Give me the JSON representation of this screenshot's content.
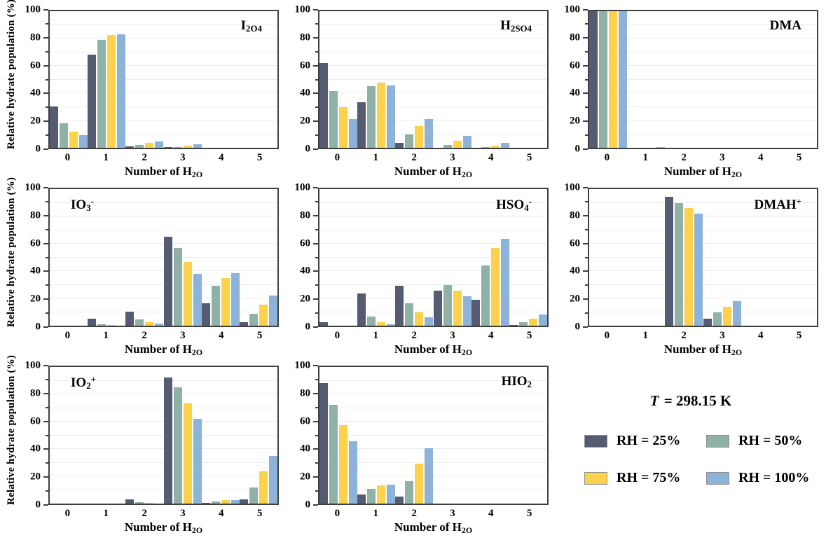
{
  "chart_data": {
    "type": "bar",
    "title": "",
    "xlabel": "Number of H_2O",
    "ylabel": "Relative hydrate population (%)",
    "ylim": [
      0,
      100
    ],
    "yticks": [
      0,
      20,
      40,
      60,
      80,
      100
    ],
    "grid": "horizontal-minor-every-10",
    "categories": [
      "0",
      "1",
      "2",
      "3",
      "4",
      "5"
    ],
    "series": [
      {
        "name": "RH = 25%",
        "color": "#555b71"
      },
      {
        "name": "RH = 50%",
        "color": "#8fb1a6"
      },
      {
        "name": "RH = 75%",
        "color": "#fcd14b"
      },
      {
        "name": "RH = 100%",
        "color": "#8db3da"
      }
    ],
    "panels": [
      {
        "title": "I_2O_4",
        "title_pos": "right",
        "values": [
          [
            30.5,
            68,
            1,
            0.3,
            0,
            0
          ],
          [
            18,
            79,
            2,
            0.5,
            0,
            0
          ],
          [
            12,
            82.5,
            3.5,
            1.5,
            0,
            0
          ],
          [
            9,
            83,
            4.5,
            2.5,
            0,
            0
          ]
        ]
      },
      {
        "title": "H_2SO_4",
        "title_pos": "right",
        "values": [
          [
            62,
            33.5,
            3.5,
            0,
            0,
            0
          ],
          [
            41.5,
            45,
            10,
            2,
            0.5,
            0
          ],
          [
            29.5,
            47.5,
            16,
            5,
            1.5,
            0
          ],
          [
            21,
            45.5,
            21,
            8.5,
            3.5,
            0
          ]
        ]
      },
      {
        "title": "DMA",
        "title_pos": "right",
        "values": [
          [
            100,
            0,
            0,
            0,
            0,
            0
          ],
          [
            100,
            0,
            0,
            0,
            0,
            0
          ],
          [
            100,
            0,
            0,
            0,
            0,
            0
          ],
          [
            100,
            0.5,
            0,
            0,
            0,
            0
          ]
        ]
      },
      {
        "title": "IO_3^-",
        "title_pos": "left",
        "values": [
          [
            0,
            5,
            10.5,
            65,
            16.5,
            2.5
          ],
          [
            0,
            1,
            4.5,
            57,
            29,
            8.5
          ],
          [
            0,
            0.5,
            2.5,
            46.5,
            35,
            15.5
          ],
          [
            0,
            0,
            1.5,
            38,
            38.5,
            22
          ]
        ]
      },
      {
        "title": "HSO_4^-",
        "title_pos": "right",
        "values": [
          [
            2.5,
            23.5,
            29,
            25.5,
            19,
            0.5
          ],
          [
            0,
            6.5,
            16.5,
            29.5,
            44,
            2.5
          ],
          [
            0,
            2.5,
            10,
            25.5,
            57,
            5
          ],
          [
            0,
            1,
            6,
            21.5,
            63.5,
            8
          ]
        ]
      },
      {
        "title": "DMAH^+",
        "title_pos": "right",
        "values": [
          [
            0,
            0,
            94.5,
            5,
            0,
            0
          ],
          [
            0,
            0,
            90,
            10,
            0,
            0
          ],
          [
            0,
            0,
            86,
            14,
            0,
            0
          ],
          [
            0,
            0,
            82,
            18,
            0,
            0
          ]
        ]
      },
      {
        "title": "IO_2^+",
        "title_pos": "left",
        "values": [
          [
            0,
            0,
            3,
            92.5,
            0.5,
            3
          ],
          [
            0,
            0,
            1,
            85,
            1.5,
            12
          ],
          [
            0,
            0,
            0.5,
            73.5,
            2.5,
            23.5
          ],
          [
            0,
            0,
            0,
            62,
            2.5,
            35
          ]
        ]
      },
      {
        "title": "HIO_2",
        "title_pos": "right",
        "values": [
          [
            88,
            6.5,
            5,
            0,
            0,
            0
          ],
          [
            72.5,
            11,
            16.5,
            0,
            0,
            0
          ],
          [
            57.5,
            13.5,
            29,
            0,
            0,
            0
          ],
          [
            45.5,
            14,
            40.5,
            0,
            0,
            0
          ]
        ]
      }
    ],
    "legend_position": "bottom-right-cell"
  },
  "legend": {
    "t_italic": "T",
    "t_rest": " = 298.15 K"
  },
  "colors": {
    "axis": "#404040",
    "gridline": "#ececec",
    "background": "#ffffff"
  }
}
